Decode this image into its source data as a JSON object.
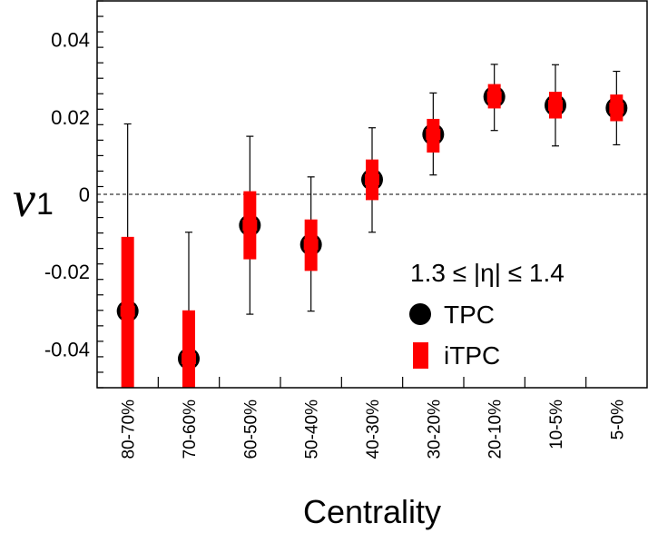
{
  "chart_data": {
    "type": "scatter",
    "categories": [
      "80-70%",
      "70-60%",
      "60-50%",
      "50-40%",
      "40-30%",
      "30-20%",
      "20-10%",
      "10-5%",
      "5-0%"
    ],
    "series": [
      {
        "name": "TPC",
        "marker": "circle",
        "color": "#000000",
        "values": [
          -0.0302,
          -0.0425,
          -0.008,
          -0.013,
          0.0038,
          0.0155,
          0.0252,
          0.023,
          0.0223
        ],
        "err_low": [
          -0.053,
          -0.053,
          -0.031,
          -0.0302,
          -0.0098,
          0.005,
          0.0165,
          0.0125,
          0.0128
        ],
        "err_high": [
          0.0182,
          -0.0098,
          0.015,
          0.0045,
          0.0172,
          0.0262,
          0.0336,
          0.0335,
          0.0318
        ]
      },
      {
        "name": "iTPC",
        "marker": "rect",
        "color": "#ff0000",
        "values": [
          -0.0302,
          -0.0425,
          -0.008,
          -0.013,
          0.0038,
          0.0155,
          0.0252,
          0.023,
          0.0223
        ],
        "err_low": [
          -0.053,
          -0.053,
          -0.0168,
          -0.0198,
          -0.0015,
          0.0108,
          0.0222,
          0.0196,
          0.0189
        ],
        "err_high": [
          -0.011,
          -0.03,
          0.0008,
          -0.0065,
          0.009,
          0.0195,
          0.0285,
          0.0265,
          0.0258
        ]
      }
    ],
    "ylim": [
      -0.05,
      0.05
    ],
    "yticks": [
      -0.04,
      -0.02,
      0,
      0.02,
      0.04
    ],
    "ytick_labels": [
      "-0.04",
      "-0.02",
      "0",
      "0.02",
      "0.04"
    ],
    "xlabel": "Centrality",
    "ylabel": "v",
    "ylabel_sub": "1",
    "annotation": "1.3 ≤ |η| ≤ 1.4",
    "zero_line": "dashed",
    "grid": false,
    "legend_position": "lower-right"
  }
}
